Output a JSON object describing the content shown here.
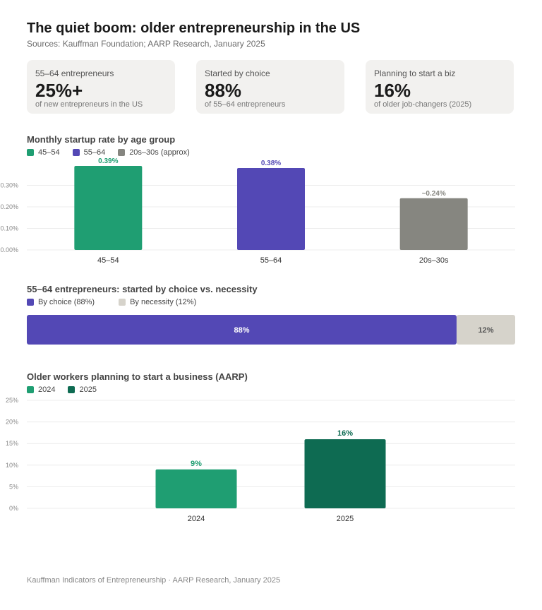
{
  "header": {
    "title": "The quiet boom: older entrepreneurship in the US",
    "subtitle": "Sources: Kauffman Foundation; AARP Research, January 2025"
  },
  "cards": [
    {
      "label": "55–64 entrepreneurs",
      "value": "25%+",
      "sub": "of new entrepreneurs in the US"
    },
    {
      "label": "Started by choice",
      "value": "88%",
      "sub": "of 55–64 entrepreneurs"
    },
    {
      "label": "Planning to start a biz",
      "value": "16%",
      "sub": "of older job-changers (2025)"
    }
  ],
  "footer": "Kauffman Indicators of Entrepreneurship · AARP Research, January 2025",
  "chart_data": [
    {
      "type": "bar",
      "title": "Monthly startup rate by age group",
      "categories": [
        "45–54",
        "55–64",
        "20s–30s"
      ],
      "values": [
        0.39,
        0.38,
        0.24
      ],
      "data_labels": [
        "0.39%",
        "0.38%",
        "~0.24%"
      ],
      "colors": [
        "#1f9e72",
        "#5348b5",
        "#868680"
      ],
      "legend": [
        "45–54",
        "55–64",
        "20s–30s (approx)"
      ],
      "legend_position": "top-left",
      "yticks": [
        0,
        0.1,
        0.2,
        0.3
      ],
      "ytick_labels": [
        "0.00%",
        "0.10%",
        "0.20%",
        "0.30%"
      ],
      "ylim": [
        0,
        0.39
      ],
      "grid": true
    },
    {
      "type": "bar",
      "orientation": "horizontal-stacked",
      "title": "55–64 entrepreneurs: started by choice vs. necessity",
      "legend": [
        "By choice (88%)",
        "By necessity (12%)"
      ],
      "legend_position": "top-left",
      "series": [
        {
          "values": [
            88
          ],
          "label": "88%"
        },
        {
          "values": [
            12
          ],
          "label": "12%"
        }
      ],
      "colors": [
        "#5348b5",
        "#d6d3cb"
      ],
      "xlim": [
        0,
        100
      ]
    },
    {
      "type": "bar",
      "title": "Older workers planning to start a business (AARP)",
      "categories": [
        "2024",
        "2025"
      ],
      "values": [
        9,
        16
      ],
      "data_labels": [
        "9%",
        "16%"
      ],
      "colors": [
        "#1f9e72",
        "#0e6b52"
      ],
      "legend": [
        "2024",
        "2025"
      ],
      "legend_position": "top-left",
      "yticks": [
        0,
        5,
        10,
        15,
        20,
        25
      ],
      "ytick_labels": [
        "0%",
        "5%",
        "10%",
        "15%",
        "20%",
        "25%"
      ],
      "ylim": [
        0,
        25
      ],
      "grid": true
    }
  ]
}
